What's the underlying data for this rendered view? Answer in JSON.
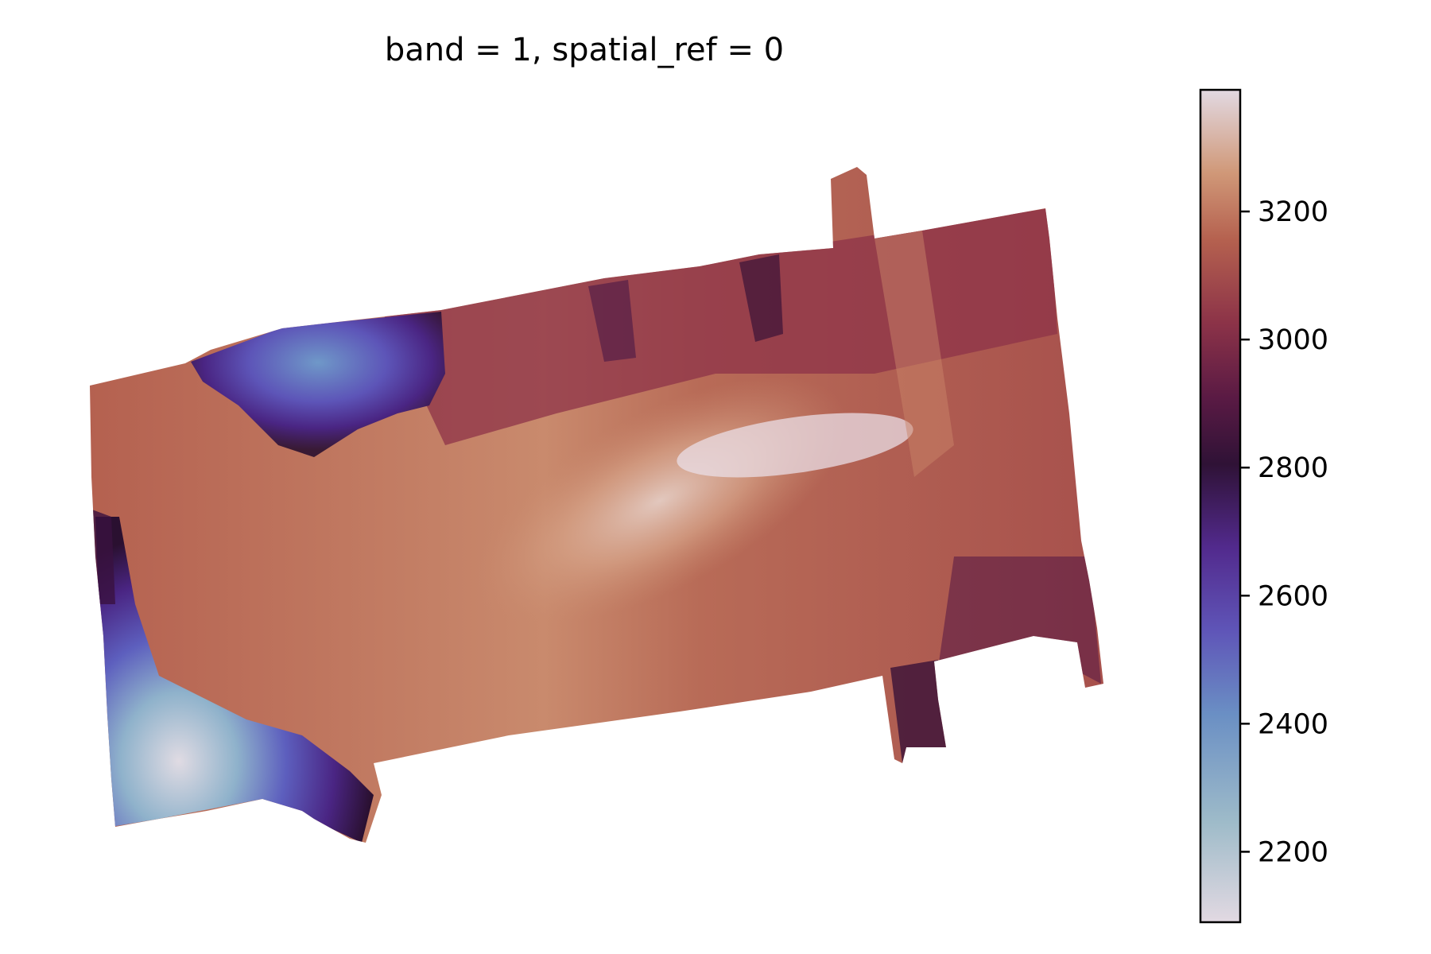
{
  "chart_data": {
    "type": "heatmap",
    "title": "band = 1, spatial_ref = 0",
    "colormap": "twilight_shifted",
    "colorbar": {
      "min": 2090,
      "max": 3390,
      "ticks": [
        2200,
        2400,
        2600,
        2800,
        3000,
        3200
      ],
      "tick_labels": [
        "2200",
        "2400",
        "2600",
        "2800",
        "3000",
        "3200"
      ],
      "orientation": "vertical",
      "placement": "right"
    },
    "axes_visible": false,
    "nodata_color": "#ffffff"
  }
}
